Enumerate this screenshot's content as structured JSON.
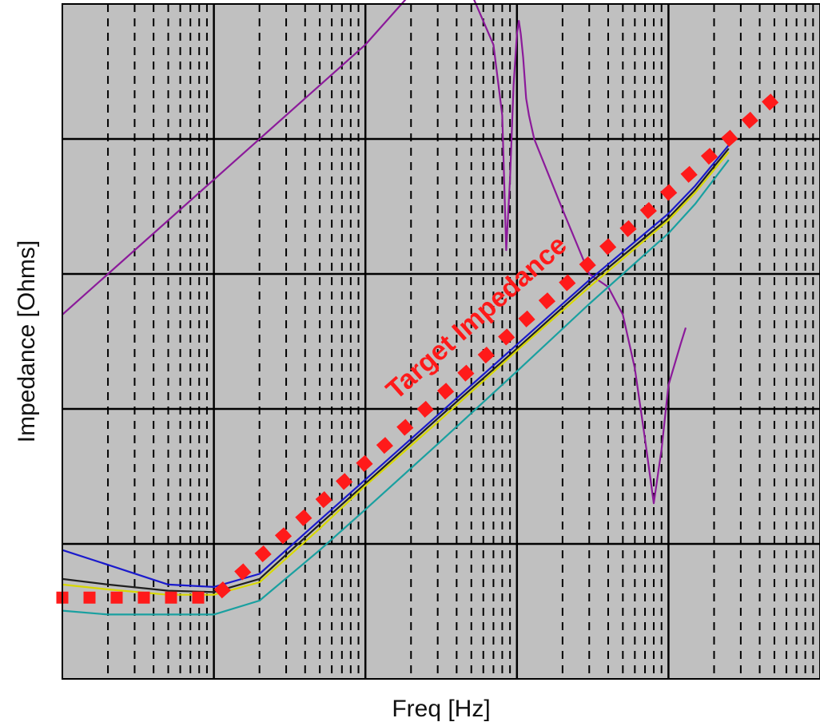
{
  "chart_data": {
    "type": "line",
    "xlabel": "Freq [Hz]",
    "ylabel": "Impedance [Ohms]",
    "x_scale": "log",
    "y_scale": "log",
    "xlim": [
      1,
      100000
    ],
    "ylim": [
      0.0001,
      10
    ],
    "grid": true,
    "background": "#c0c0c0",
    "annotations": [
      {
        "text": "Target Impedance",
        "color": "#ff1a1a"
      }
    ],
    "series": [
      {
        "color": "#ff1a1a",
        "style": "dotted-squares",
        "x": [
          1,
          10,
          100,
          1000,
          10000,
          50000
        ],
        "y": [
          0.0004,
          0.0004,
          0.004,
          0.04,
          0.4,
          2.0
        ]
      },
      {
        "color": "#8b1a9a",
        "x": [
          1,
          10,
          100,
          300,
          500,
          700,
          800,
          850,
          900,
          950,
          1000,
          1030,
          1060,
          1100,
          1150,
          1200,
          1300,
          2000,
          3000,
          4000,
          5000,
          6000,
          7000,
          8000,
          9000,
          10000,
          12000,
          13000
        ],
        "y": [
          0.05,
          0.5,
          5,
          20,
          12,
          5,
          1.5,
          0.15,
          0.5,
          2.5,
          6,
          7.5,
          6,
          4,
          2,
          1.5,
          1,
          0.3,
          0.1,
          0.08,
          0.05,
          0.02,
          0.006,
          0.002,
          0.005,
          0.015,
          0.03,
          0.04
        ]
      },
      {
        "color": "#1a1acc",
        "x": [
          1,
          2,
          5,
          10,
          20,
          50,
          100,
          300,
          1000,
          3000,
          10000,
          15000,
          25000
        ],
        "y": [
          0.0009,
          0.0007,
          0.0005,
          0.00048,
          0.0006,
          0.0015,
          0.003,
          0.009,
          0.03,
          0.09,
          0.28,
          0.45,
          0.9
        ]
      },
      {
        "color": "#202020",
        "x": [
          1,
          2,
          5,
          10,
          20,
          50,
          100,
          300,
          1000,
          3000,
          10000,
          15000,
          25000
        ],
        "y": [
          0.00055,
          0.0005,
          0.00045,
          0.00044,
          0.00055,
          0.0014,
          0.0028,
          0.0085,
          0.028,
          0.085,
          0.26,
          0.42,
          0.85
        ]
      },
      {
        "color": "#d8d800",
        "x": [
          1,
          2,
          5,
          10,
          20,
          50,
          100,
          300,
          1000,
          3000,
          10000,
          15000,
          25000
        ],
        "y": [
          0.0005,
          0.00046,
          0.00042,
          0.00042,
          0.00052,
          0.0013,
          0.0027,
          0.008,
          0.027,
          0.08,
          0.25,
          0.4,
          0.8
        ]
      },
      {
        "color": "#19a0a0",
        "x": [
          1,
          2,
          5,
          10,
          20,
          50,
          100,
          300,
          1000,
          3000,
          10000,
          15000,
          25000
        ],
        "y": [
          0.00032,
          0.0003,
          0.0003,
          0.0003,
          0.00038,
          0.0009,
          0.0018,
          0.0055,
          0.019,
          0.06,
          0.2,
          0.33,
          0.7
        ]
      }
    ]
  }
}
